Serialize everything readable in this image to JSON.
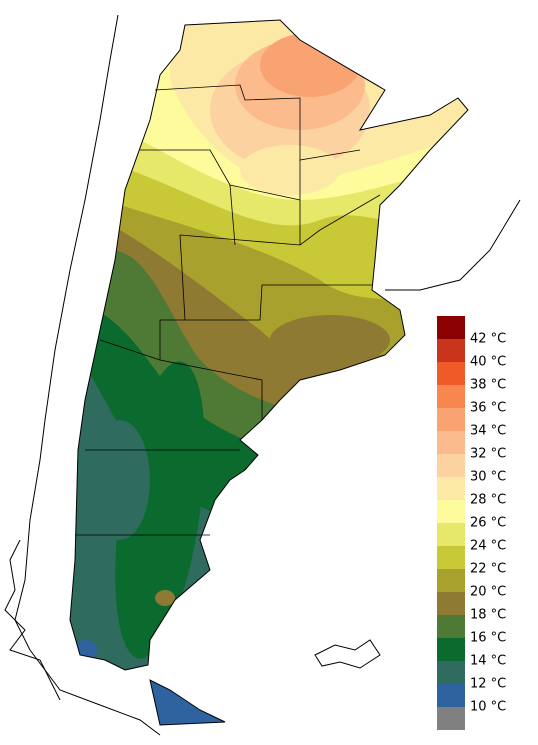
{
  "legend": {
    "colors": [
      "#8b0000",
      "#c8351a",
      "#f05a28",
      "#f7874e",
      "#f9a373",
      "#fbbb8c",
      "#fcd3a0",
      "#fde9a6",
      "#fdfb9c",
      "#e6e86a",
      "#c9c938",
      "#a9a12d",
      "#8f7a33",
      "#4f7a35",
      "#0b6b2e",
      "#2f6b5e",
      "#2e63a0",
      "#808080"
    ],
    "labels": [
      "42 °C",
      "40 °C",
      "38 °C",
      "36 °C",
      "34 °C",
      "32 °C",
      "30 °C",
      "28 °C",
      "26 °C",
      "24 °C",
      "22 °C",
      "20 °C",
      "18 °C",
      "16 °C",
      "14 °C",
      "12 °C",
      "10 °C"
    ]
  }
}
